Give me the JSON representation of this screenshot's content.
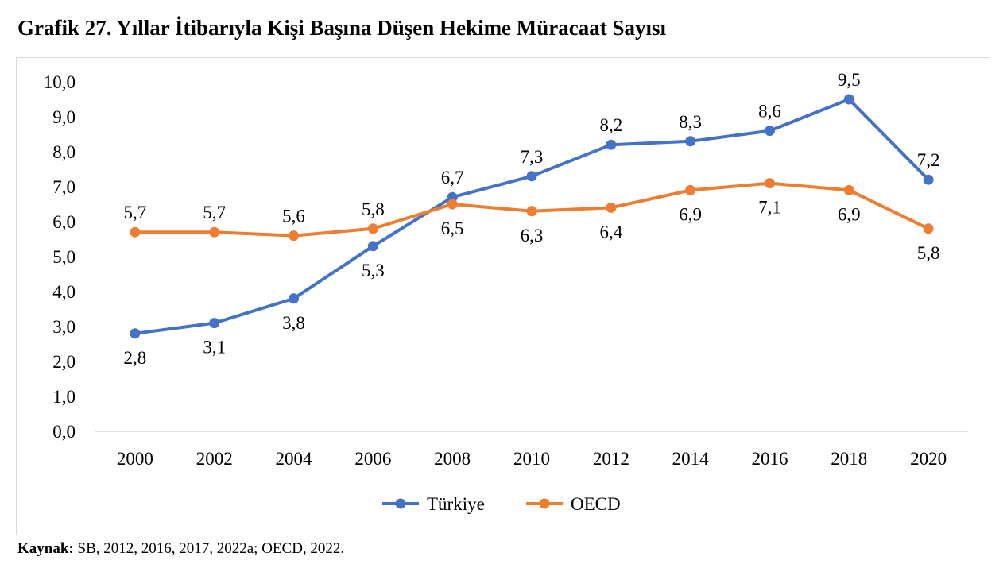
{
  "title": "Grafik 27. Yıllar İtibarıyla Kişi Başına Düşen Hekime Müracaat Sayısı",
  "source": {
    "label": "Kaynak:",
    "text": " SB, 2012, 2016, 2017, 2022a; OECD, 2022."
  },
  "colors": {
    "turkiye": "#4472C4",
    "oecd": "#ED7D31",
    "axis": "#d9d9d9"
  },
  "chart_data": {
    "type": "line",
    "title": "Grafik 27. Yıllar İtibarıyla Kişi Başına Düşen Hekime Müracaat Sayısı",
    "categories": [
      "2000",
      "2002",
      "2004",
      "2006",
      "2008",
      "2010",
      "2012",
      "2014",
      "2016",
      "2018",
      "2020"
    ],
    "y_ticks": [
      "0,0",
      "1,0",
      "2,0",
      "3,0",
      "4,0",
      "5,0",
      "6,0",
      "7,0",
      "8,0",
      "9,0",
      "10,0"
    ],
    "ylim": [
      0,
      10
    ],
    "grid": false,
    "legend": "bottom-center",
    "series": [
      {
        "name": "Türkiye",
        "values": [
          2.8,
          3.1,
          3.8,
          5.3,
          6.7,
          7.3,
          8.2,
          8.3,
          8.6,
          9.5,
          7.2
        ],
        "labels": [
          "2,8",
          "3,1",
          "3,8",
          "5,3",
          "6,7",
          "7,3",
          "8,2",
          "8,3",
          "8,6",
          "9,5",
          "7,2"
        ]
      },
      {
        "name": "OECD",
        "values": [
          5.7,
          5.7,
          5.6,
          5.8,
          6.5,
          6.3,
          6.4,
          6.9,
          7.1,
          6.9,
          5.8
        ],
        "labels": [
          "5,7",
          "5,7",
          "5,6",
          "5,8",
          "6,5",
          "6,3",
          "6,4",
          "6,9",
          "7,1",
          "6,9",
          "5,8"
        ]
      }
    ]
  }
}
